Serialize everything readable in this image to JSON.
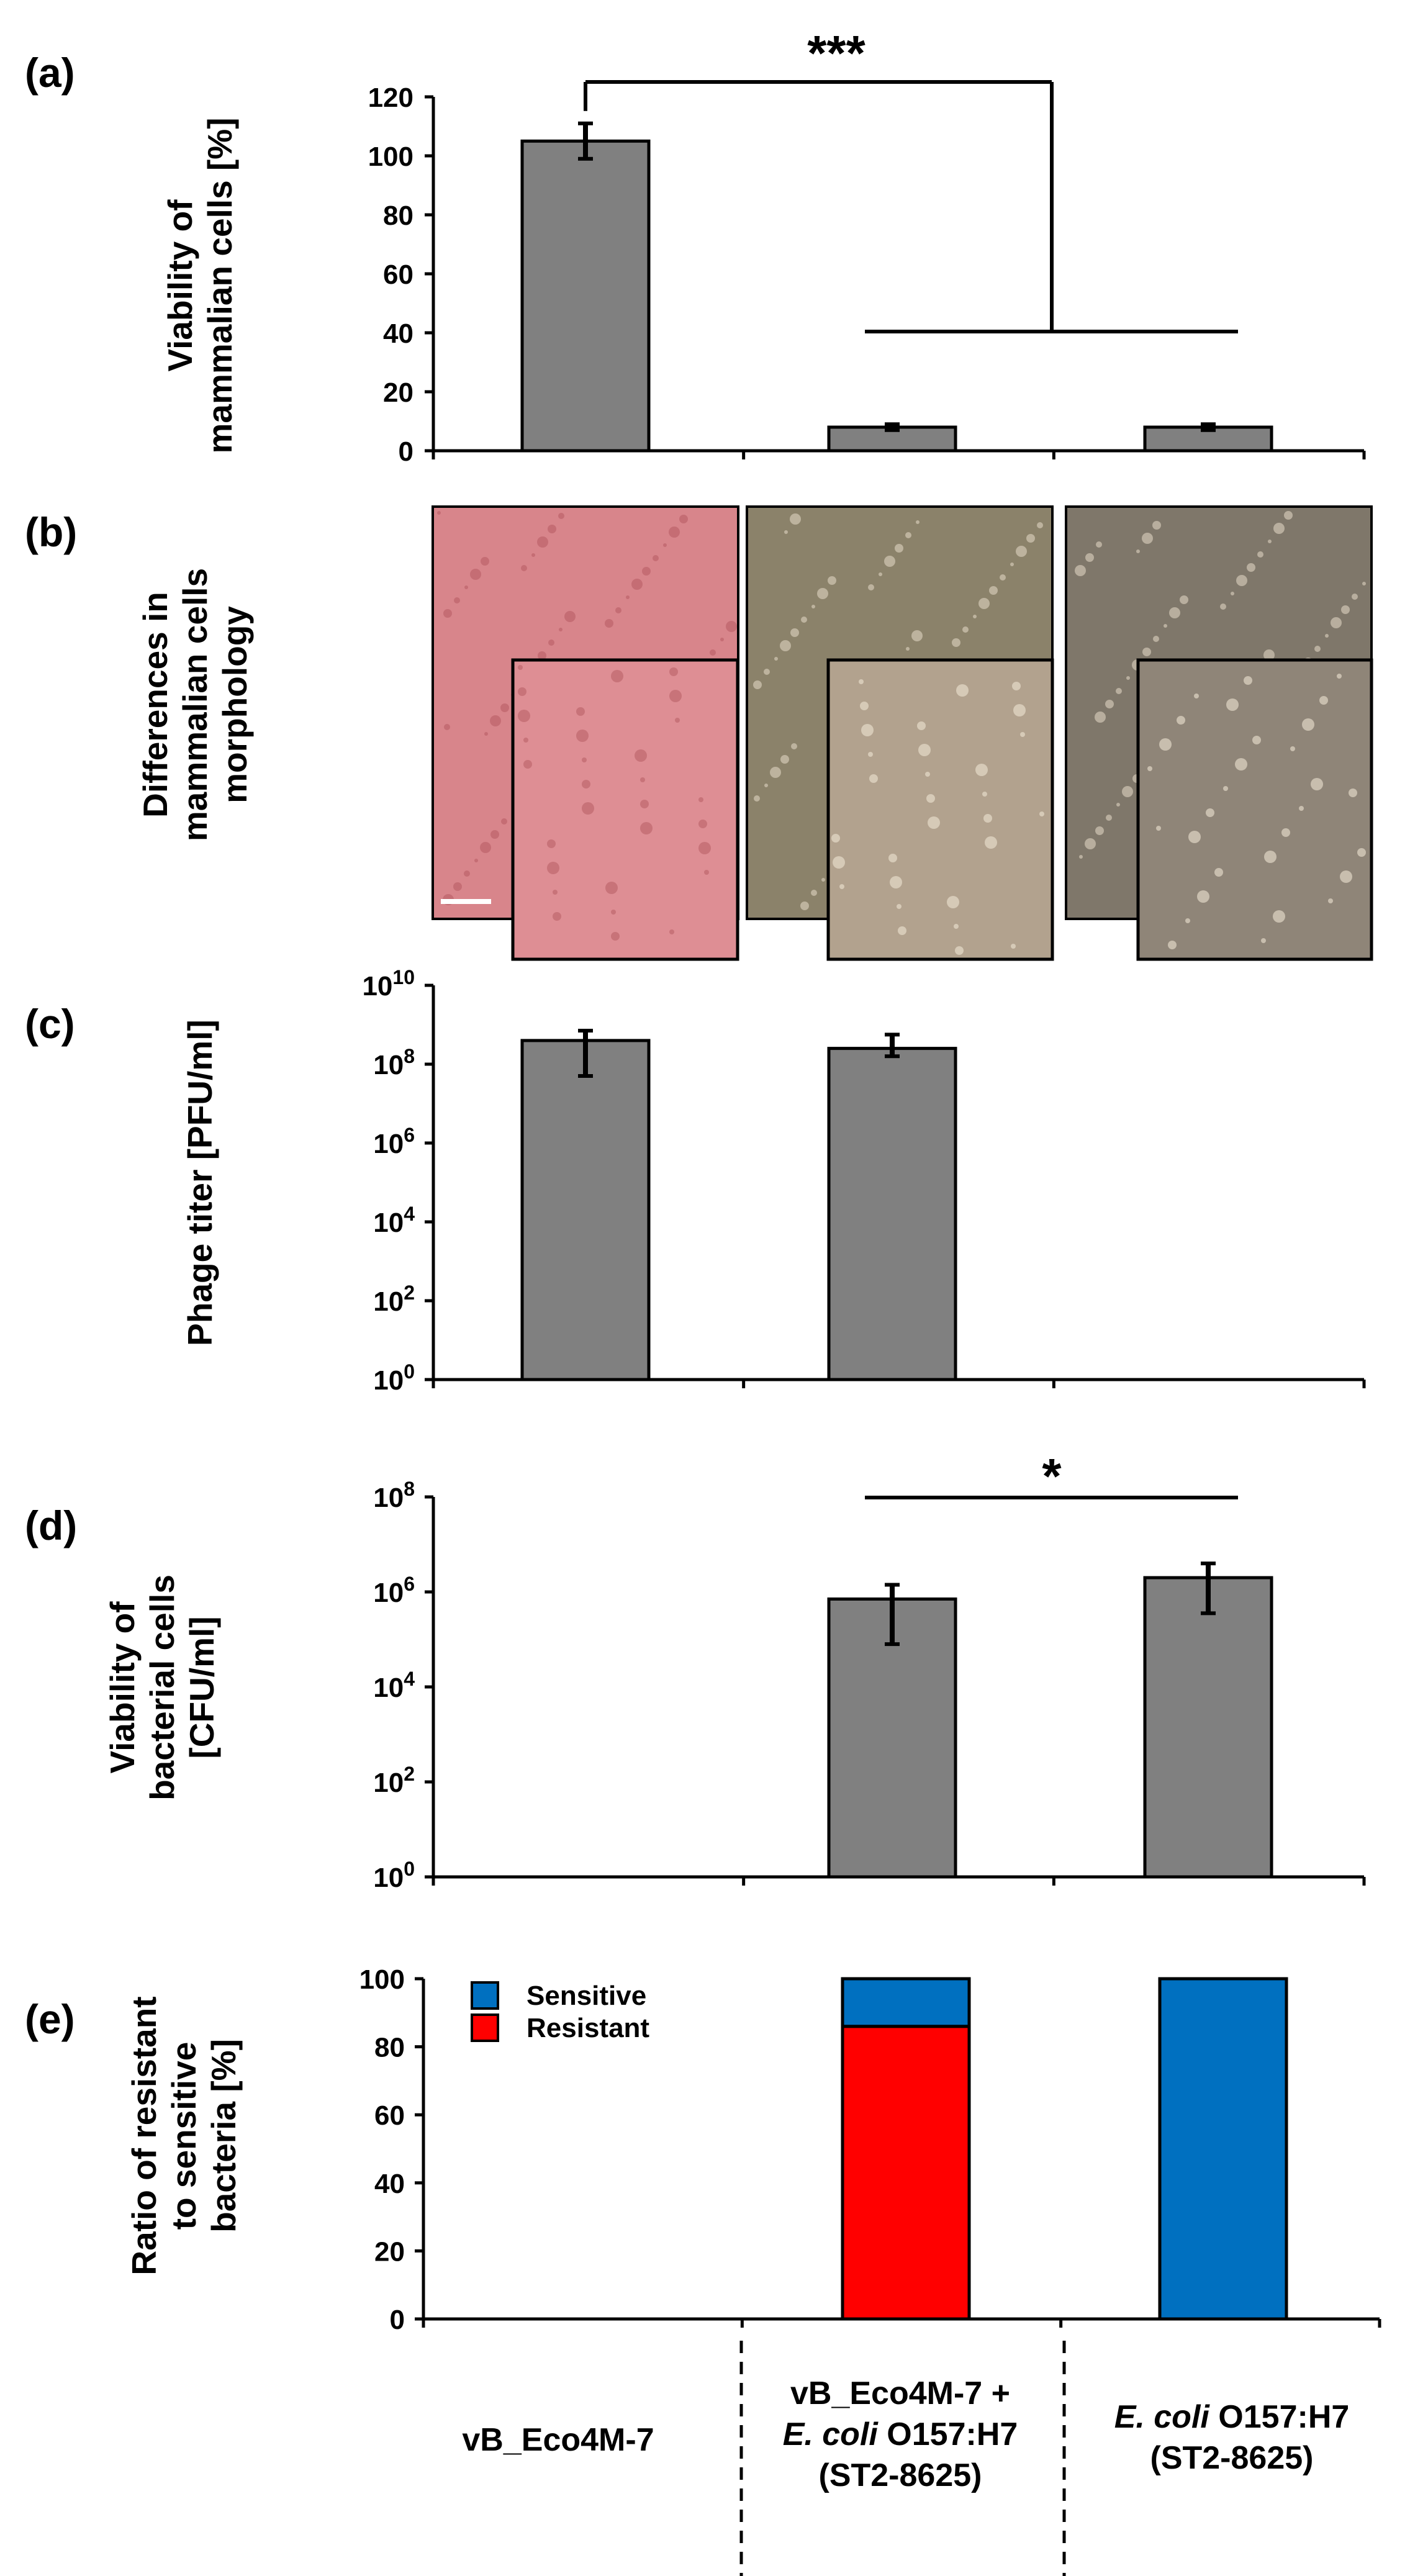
{
  "chart_data": [
    {
      "panel": "(a)",
      "type": "bar",
      "ylabel": [
        "Viability of",
        "mammalian cells [%]"
      ],
      "ylim": [
        0,
        120
      ],
      "yticks": [
        "0",
        "20",
        "40",
        "60",
        "80",
        "100",
        "120"
      ],
      "categories": [
        "vB_Eco4M-7",
        "vB_Eco4M-7 + E. coli O157:H7 (ST2-8625)",
        "E. coli O157:H7 (ST2-8625)"
      ],
      "values": [
        105,
        8,
        8
      ],
      "errors": [
        6,
        1,
        1
      ],
      "bar_color": "#808080",
      "annotations": [
        {
          "text": "***",
          "between": [
            "vB_Eco4M-7",
            "vB_Eco4M-7 + E. coli O157:H7 (ST2-8625) / E. coli O157:H7 (ST2-8625)"
          ]
        }
      ]
    },
    {
      "panel": "(b)",
      "type": "image_panel",
      "ylabel": [
        "Differences in",
        "mammalian cells",
        "morphology"
      ],
      "images": [
        {
          "category": "vB_Eco4M-7",
          "tone": "#d8858b",
          "inset_tone": "#de8e94"
        },
        {
          "category": "vB_Eco4M-7 + E. coli O157:H7 (ST2-8625)",
          "tone": "#8b826a",
          "inset_tone": "#b2a28e"
        },
        {
          "category": "E. coli O157:H7 (ST2-8625)",
          "tone": "#7f776a",
          "inset_tone": "#8f8578"
        }
      ]
    },
    {
      "panel": "(c)",
      "type": "bar",
      "scale": "log10",
      "ylabel": [
        "Phage titer [PFU/ml]"
      ],
      "ylim_log10": [
        0,
        10
      ],
      "ytick_base": "10",
      "ytick_exponents": [
        "0",
        "2",
        "4",
        "6",
        "8",
        "10"
      ],
      "categories": [
        "vB_Eco4M-7",
        "vB_Eco4M-7 + E. coli O157:H7 (ST2-8625)",
        "E. coli O157:H7 (ST2-8625)"
      ],
      "log_values": [
        8.6,
        8.4,
        null
      ],
      "log_err_low": [
        7.7,
        8.2,
        null
      ],
      "log_err_high": [
        8.85,
        8.75,
        null
      ],
      "bar_color": "#808080"
    },
    {
      "panel": "(d)",
      "type": "bar",
      "scale": "log10",
      "ylabel": [
        "Viability of",
        "bacterial cells",
        "[CFU/ml]"
      ],
      "ylim_log10": [
        0,
        8
      ],
      "ytick_base": "10",
      "ytick_exponents": [
        "0",
        "2",
        "4",
        "6",
        "8"
      ],
      "categories": [
        "vB_Eco4M-7",
        "vB_Eco4M-7 + E. coli O157:H7 (ST2-8625)",
        "E. coli O157:H7 (ST2-8625)"
      ],
      "log_values": [
        null,
        5.85,
        6.3
      ],
      "log_err_low": [
        null,
        4.9,
        5.55
      ],
      "log_err_high": [
        null,
        6.15,
        6.6
      ],
      "bar_color": "#808080",
      "annotations": [
        {
          "text": "*",
          "between": [
            "vB_Eco4M-7 + E. coli O157:H7 (ST2-8625)",
            "E. coli O157:H7 (ST2-8625)"
          ]
        }
      ]
    },
    {
      "panel": "(e)",
      "type": "stacked_bar",
      "ylabel": [
        "Ratio of resistant",
        "to sensitive",
        "bacteria [%]"
      ],
      "ylim": [
        0,
        100
      ],
      "yticks": [
        "0",
        "20",
        "40",
        "60",
        "80",
        "100"
      ],
      "categories": [
        "vB_Eco4M-7",
        "vB_Eco4M-7 + E. coli O157:H7 (ST2-8625)",
        "E. coli O157:H7 (ST2-8625)"
      ],
      "series": [
        {
          "name": "Resistant",
          "color": "#ff0000",
          "values": [
            null,
            86,
            0
          ]
        },
        {
          "name": "Sensitive",
          "color": "#0070c0",
          "values": [
            null,
            14,
            100
          ]
        }
      ],
      "legend": [
        "Sensitive",
        "Resistant"
      ],
      "legend_position": "top-left"
    }
  ],
  "category_labels": [
    [
      [
        {
          "t": "vB_Eco4M-7"
        }
      ]
    ],
    [
      [
        {
          "t": "vB_Eco4M-7 +"
        }
      ],
      [
        {
          "t": "E. coli",
          "i": true
        },
        {
          "t": " O157:H7"
        }
      ],
      [
        {
          "t": "(ST2-8625)"
        }
      ]
    ],
    [
      [
        {
          "t": "E. coli",
          "i": true
        },
        {
          "t": " O157:H7"
        }
      ],
      [
        {
          "t": "(ST2-8625)"
        }
      ]
    ]
  ]
}
